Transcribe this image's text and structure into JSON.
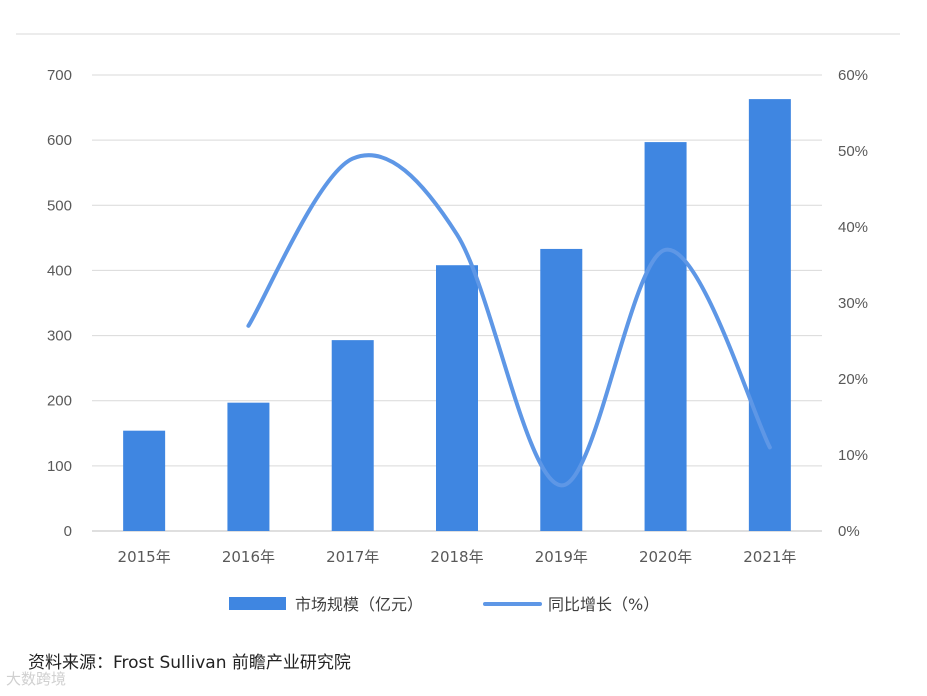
{
  "colors": {
    "bar": "#3f86e1",
    "line": "#5e97e6",
    "grid": "#d9d9d9",
    "text": "#595959"
  },
  "source": "资料来源：Frost Sullivan 前瞻产业研究院",
  "corner_watermark": "大数跨境",
  "chart_data": {
    "type": "bar",
    "categories": [
      "2015年",
      "2016年",
      "2017年",
      "2018年",
      "2019年",
      "2020年",
      "2021年"
    ],
    "series": [
      {
        "name": "市场规模（亿元）",
        "type": "bar",
        "axis": "left",
        "values": [
          154,
          197,
          293,
          408,
          433,
          597,
          663
        ]
      },
      {
        "name": "同比增长（%）",
        "type": "line",
        "axis": "right",
        "values": [
          null,
          27,
          49,
          39,
          6,
          37,
          11
        ]
      }
    ],
    "y_left": {
      "range": [
        0,
        700
      ],
      "ticks": [
        "0",
        "100",
        "200",
        "300",
        "400",
        "500",
        "600",
        "700"
      ]
    },
    "y_right": {
      "range": [
        0,
        60
      ],
      "ticks": [
        "0%",
        "10%",
        "20%",
        "30%",
        "40%",
        "50%",
        "60%"
      ]
    },
    "grid": true,
    "legend_position": "bottom"
  }
}
